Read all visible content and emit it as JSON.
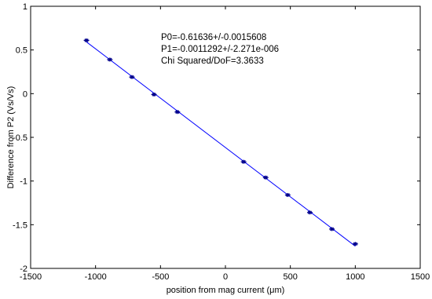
{
  "chart_data": {
    "type": "scatter",
    "title": "",
    "xlabel": "position from mag current (μm)",
    "ylabel": "Difference from P2 (Vs/Vs)",
    "xlim": [
      -1500,
      1500
    ],
    "ylim": [
      -2,
      1
    ],
    "xticks": [
      -1500,
      -1000,
      -500,
      0,
      500,
      1000,
      1500
    ],
    "xtick_labels": [
      "-1500",
      "-1000",
      "-500",
      "0",
      "500",
      "1000",
      "1500"
    ],
    "yticks": [
      -2,
      -1.5,
      -1,
      -0.5,
      0,
      0.5,
      1
    ],
    "ytick_labels": [
      "-2",
      "-1.5",
      "-1",
      "-0.5",
      "0",
      "0.5",
      "1"
    ],
    "grid": false,
    "series": [
      {
        "color": "#00008b",
        "x": [
          -1070,
          -890,
          -720,
          -550,
          -370,
          140,
          310,
          480,
          650,
          820,
          1000
        ],
        "y": [
          0.61,
          0.39,
          0.19,
          -0.01,
          -0.21,
          -0.78,
          -0.96,
          -1.16,
          -1.36,
          -1.55,
          -1.72
        ]
      }
    ],
    "fit": {
      "color": "#0000ff",
      "p0": -0.61636,
      "p1": -0.0011292,
      "x_range": [
        -1070,
        1000
      ]
    },
    "annotations": [
      "P0=-0.61636+/-0.0015608",
      "P1=-0.0011292+/-2.271e-006",
      "Chi Squared/DoF=3.3633"
    ]
  }
}
